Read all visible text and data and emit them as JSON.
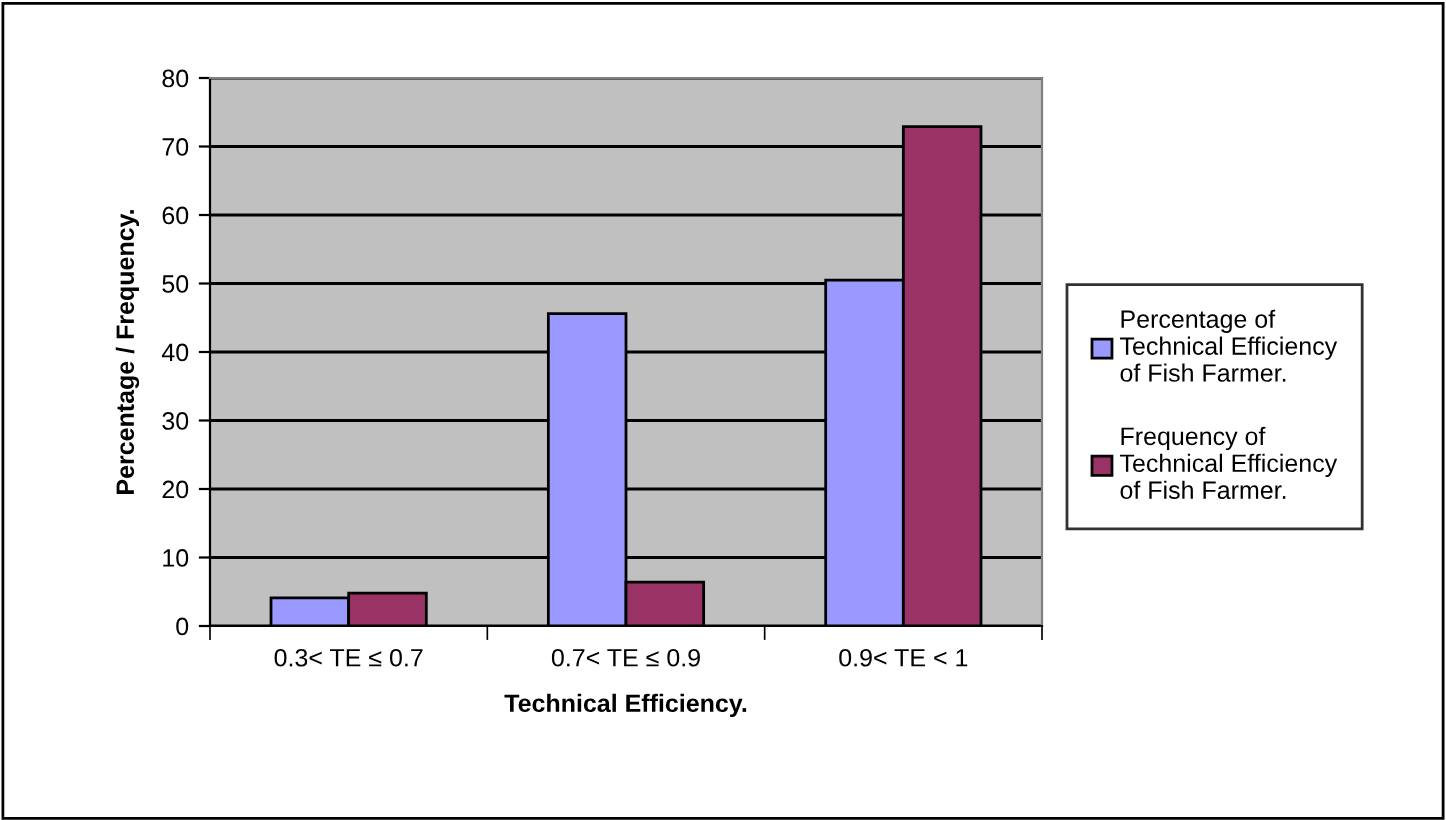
{
  "chart_data": {
    "type": "bar",
    "xlabel": "Technical Efficiency.",
    "ylabel": "Percentage / Frequency.",
    "categories": [
      "0.3< TE ≤ 0.7",
      "0.7< TE ≤ 0.9",
      "0.9< TE < 1"
    ],
    "series": [
      {
        "name": "Percentage of Technical Efficiency of Fish Farmer.",
        "color": "#9999ff",
        "values": [
          4.1,
          45.6,
          50.5
        ]
      },
      {
        "name": "Frequency of Technical Efficiency of Fish Farmer.",
        "color": "#993366",
        "values": [
          4.8,
          6.4,
          72.9
        ]
      }
    ],
    "ylim": [
      0,
      80
    ],
    "yticks": [
      0,
      10,
      20,
      30,
      40,
      50,
      60,
      70,
      80
    ],
    "grid": "y",
    "legend": "right"
  }
}
